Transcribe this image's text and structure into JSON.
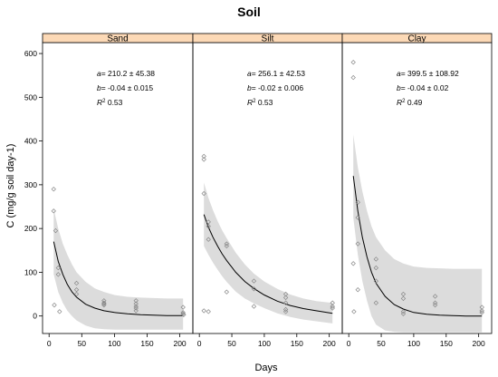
{
  "chart_data": {
    "type": "scatter",
    "title": "Soil",
    "xlabel": "Days",
    "ylabel": "C (mg/g soil day-1)",
    "xlim": [
      -10,
      220
    ],
    "ylim": [
      -40,
      625
    ],
    "xticks": [
      0,
      50,
      100,
      150,
      200
    ],
    "yticks": [
      0,
      100,
      200,
      300,
      400,
      500,
      600
    ],
    "strip_fill": "#fcd9b6",
    "band_fill": "#dcdcdc",
    "panels": [
      {
        "name": "Sand",
        "annotation": {
          "a": "210.2 ± 45.38",
          "b": "-0.04 ± 0.015",
          "r2": "0.53"
        },
        "points": [
          [
            7,
            290
          ],
          [
            7,
            240
          ],
          [
            8,
            25
          ],
          [
            10,
            195
          ],
          [
            14,
            110
          ],
          [
            14,
            95
          ],
          [
            16,
            10
          ],
          [
            42,
            75
          ],
          [
            42,
            60
          ],
          [
            42,
            50
          ],
          [
            84,
            35
          ],
          [
            84,
            30
          ],
          [
            84,
            28
          ],
          [
            84,
            25
          ],
          [
            133,
            35
          ],
          [
            133,
            28
          ],
          [
            133,
            22
          ],
          [
            133,
            18
          ],
          [
            133,
            12
          ],
          [
            205,
            20
          ],
          [
            205,
            8
          ],
          [
            205,
            5
          ],
          [
            206,
            3
          ]
        ],
        "curve": [
          [
            7,
            170
          ],
          [
            14,
            125
          ],
          [
            21,
            95
          ],
          [
            28,
            72
          ],
          [
            35,
            55
          ],
          [
            42,
            43
          ],
          [
            56,
            27
          ],
          [
            70,
            18
          ],
          [
            84,
            12
          ],
          [
            100,
            8
          ],
          [
            120,
            5
          ],
          [
            140,
            3
          ],
          [
            160,
            2
          ],
          [
            180,
            1
          ],
          [
            205,
            1
          ]
        ],
        "band_upper": [
          [
            7,
            245
          ],
          [
            14,
            200
          ],
          [
            21,
            165
          ],
          [
            28,
            140
          ],
          [
            35,
            118
          ],
          [
            42,
            100
          ],
          [
            56,
            78
          ],
          [
            70,
            63
          ],
          [
            84,
            55
          ],
          [
            100,
            48
          ],
          [
            120,
            44
          ],
          [
            140,
            42
          ],
          [
            160,
            41
          ],
          [
            180,
            40
          ],
          [
            205,
            40
          ]
        ],
        "band_lower": [
          [
            7,
            95
          ],
          [
            14,
            55
          ],
          [
            21,
            30
          ],
          [
            28,
            12
          ],
          [
            35,
            0
          ],
          [
            42,
            -10
          ],
          [
            56,
            -22
          ],
          [
            70,
            -28
          ],
          [
            84,
            -30
          ],
          [
            100,
            -31
          ],
          [
            120,
            -31
          ],
          [
            140,
            -31
          ],
          [
            160,
            -31
          ],
          [
            180,
            -31
          ],
          [
            205,
            -31
          ]
        ]
      },
      {
        "name": "Silt",
        "annotation": {
          "a": "256.1 ± 42.53",
          "b": "-0.02 ± 0.006",
          "r2": "0.53"
        },
        "points": [
          [
            7,
            365
          ],
          [
            7,
            358
          ],
          [
            7,
            280
          ],
          [
            7,
            12
          ],
          [
            14,
            215
          ],
          [
            14,
            205
          ],
          [
            14,
            175
          ],
          [
            14,
            10
          ],
          [
            42,
            165
          ],
          [
            42,
            160
          ],
          [
            42,
            55
          ],
          [
            84,
            80
          ],
          [
            84,
            62
          ],
          [
            84,
            22
          ],
          [
            133,
            50
          ],
          [
            133,
            42
          ],
          [
            133,
            30
          ],
          [
            133,
            15
          ],
          [
            133,
            10
          ],
          [
            205,
            30
          ],
          [
            205,
            22
          ],
          [
            205,
            18
          ]
        ],
        "curve": [
          [
            7,
            232
          ],
          [
            14,
            203
          ],
          [
            21,
            180
          ],
          [
            28,
            160
          ],
          [
            35,
            142
          ],
          [
            42,
            127
          ],
          [
            56,
            100
          ],
          [
            70,
            79
          ],
          [
            84,
            63
          ],
          [
            100,
            48
          ],
          [
            120,
            34
          ],
          [
            140,
            24
          ],
          [
            160,
            17
          ],
          [
            180,
            12
          ],
          [
            205,
            6
          ]
        ],
        "band_upper": [
          [
            7,
            305
          ],
          [
            14,
            270
          ],
          [
            21,
            242
          ],
          [
            28,
            217
          ],
          [
            35,
            196
          ],
          [
            42,
            178
          ],
          [
            56,
            145
          ],
          [
            70,
            118
          ],
          [
            84,
            97
          ],
          [
            100,
            79
          ],
          [
            120,
            62
          ],
          [
            140,
            49
          ],
          [
            160,
            40
          ],
          [
            180,
            34
          ],
          [
            205,
            30
          ]
        ],
        "band_lower": [
          [
            7,
            160
          ],
          [
            14,
            140
          ],
          [
            21,
            122
          ],
          [
            28,
            106
          ],
          [
            35,
            91
          ],
          [
            42,
            78
          ],
          [
            56,
            56
          ],
          [
            70,
            40
          ],
          [
            84,
            29
          ],
          [
            100,
            18
          ],
          [
            120,
            6
          ],
          [
            140,
            -2
          ],
          [
            160,
            -8
          ],
          [
            180,
            -12
          ],
          [
            205,
            -17
          ]
        ]
      },
      {
        "name": "Clay",
        "annotation": {
          "a": "399.5 ± 108.92",
          "b": "-0.04 ± 0.02",
          "r2": "0.49"
        },
        "points": [
          [
            7,
            580
          ],
          [
            7,
            545
          ],
          [
            7,
            120
          ],
          [
            8,
            10
          ],
          [
            14,
            260
          ],
          [
            14,
            225
          ],
          [
            14,
            165
          ],
          [
            14,
            60
          ],
          [
            42,
            130
          ],
          [
            42,
            110
          ],
          [
            42,
            80
          ],
          [
            42,
            30
          ],
          [
            84,
            50
          ],
          [
            84,
            40
          ],
          [
            84,
            10
          ],
          [
            84,
            5
          ],
          [
            133,
            45
          ],
          [
            133,
            30
          ],
          [
            133,
            25
          ],
          [
            205,
            20
          ],
          [
            205,
            12
          ],
          [
            205,
            8
          ]
        ],
        "curve": [
          [
            7,
            320
          ],
          [
            14,
            240
          ],
          [
            21,
            180
          ],
          [
            28,
            135
          ],
          [
            35,
            100
          ],
          [
            42,
            75
          ],
          [
            56,
            45
          ],
          [
            70,
            26
          ],
          [
            84,
            16
          ],
          [
            100,
            8
          ],
          [
            120,
            4
          ],
          [
            140,
            2
          ],
          [
            160,
            1
          ],
          [
            180,
            0
          ],
          [
            205,
            0
          ]
        ],
        "band_upper": [
          [
            7,
            415
          ],
          [
            14,
            340
          ],
          [
            21,
            285
          ],
          [
            28,
            240
          ],
          [
            35,
            205
          ],
          [
            42,
            180
          ],
          [
            56,
            150
          ],
          [
            70,
            130
          ],
          [
            84,
            120
          ],
          [
            100,
            113
          ],
          [
            120,
            110
          ],
          [
            140,
            109
          ],
          [
            160,
            108
          ],
          [
            180,
            108
          ],
          [
            205,
            108
          ]
        ],
        "band_lower": [
          [
            7,
            225
          ],
          [
            14,
            140
          ],
          [
            21,
            80
          ],
          [
            28,
            35
          ],
          [
            35,
            0
          ],
          [
            42,
            -20
          ],
          [
            56,
            -33
          ],
          [
            70,
            -36
          ],
          [
            84,
            -37
          ],
          [
            100,
            -37
          ],
          [
            120,
            -37
          ],
          [
            140,
            -37
          ],
          [
            160,
            -37
          ],
          [
            180,
            -37
          ],
          [
            205,
            -37
          ]
        ]
      }
    ]
  }
}
